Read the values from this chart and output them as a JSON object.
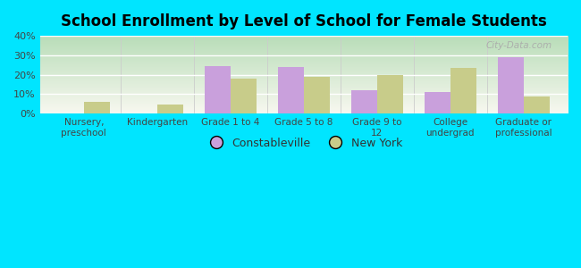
{
  "title": "School Enrollment by Level of School for Female Students",
  "categories": [
    "Nursery,\npreschool",
    "Kindergarten",
    "Grade 1 to 4",
    "Grade 5 to 8",
    "Grade 9 to\n12",
    "College\nundergrad",
    "Graduate or\nprofessional"
  ],
  "constableville": [
    0,
    0,
    24.5,
    24.0,
    12.0,
    11.0,
    29.0
  ],
  "new_york": [
    6.0,
    4.5,
    18.0,
    19.0,
    20.0,
    23.5,
    9.0
  ],
  "color_constableville": "#c9a0dc",
  "color_new_york": "#c8cc8a",
  "ylim": [
    0,
    40
  ],
  "yticks": [
    0,
    10,
    20,
    30,
    40
  ],
  "ytick_labels": [
    "0%",
    "10%",
    "20%",
    "30%",
    "40%"
  ],
  "background_color": "#00e5ff",
  "plot_bg_topleft": "#b8ddb8",
  "plot_bg_bottomright": "#f8f8f0",
  "bar_width": 0.35,
  "legend_labels": [
    "Constableville",
    "New York"
  ],
  "watermark": "City-Data.com"
}
